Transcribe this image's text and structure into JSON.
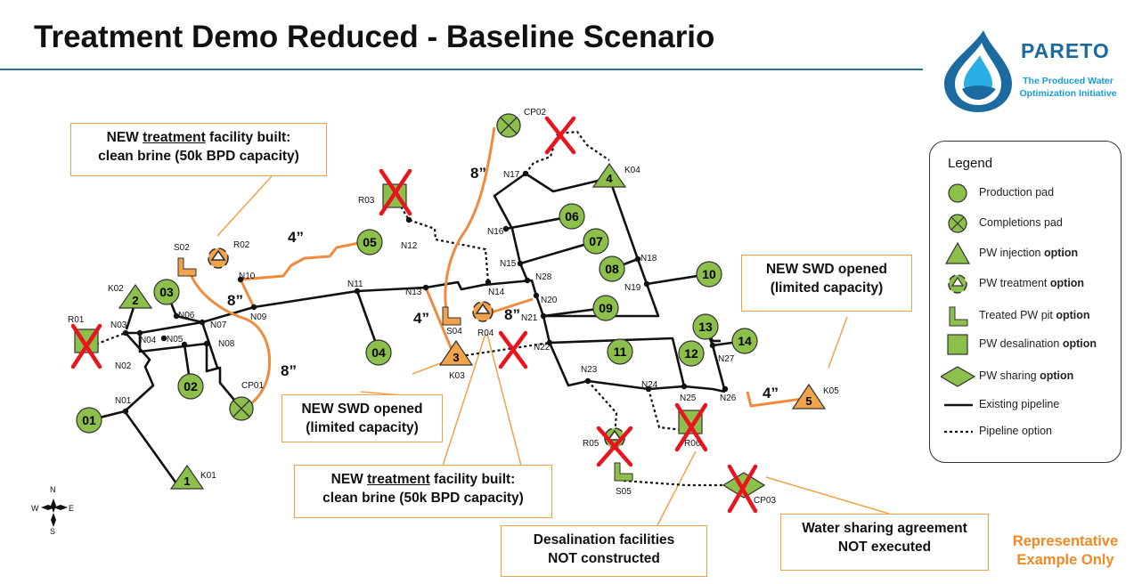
{
  "title": "Treatment Demo Reduced - Baseline Scenario",
  "logo": {
    "name": "PARETO",
    "tagline": "The Produced Water Optimization Initiative"
  },
  "colors": {
    "pipeline": "#111111",
    "new_pipeline": "#f08a3c",
    "pad_fill": "#8cc04b",
    "option_fill": "#f0a34a",
    "not_built": "#e8141e",
    "callout_border": "#f0a34a"
  },
  "nodes": {
    "production": [
      "01",
      "02",
      "03",
      "04",
      "05",
      "06",
      "07",
      "08",
      "09",
      "10",
      "11",
      "12",
      "13",
      "14"
    ],
    "completions": [
      "CP01",
      "CP02",
      "CP03"
    ],
    "injection": [
      "1",
      "2",
      "3",
      "4",
      "5"
    ],
    "injection_labels": [
      "K01",
      "K02",
      "K03",
      "K04",
      "K05"
    ],
    "treatment": [
      "R02",
      "R04",
      "R05"
    ],
    "pits": [
      "S02",
      "S04",
      "S05"
    ],
    "desalination": [
      "R01",
      "R03",
      "R06"
    ],
    "junctions": [
      "N01",
      "N02",
      "N03",
      "N04",
      "N05",
      "N06",
      "N07",
      "N08",
      "N09",
      "N10",
      "N11",
      "N12",
      "N13",
      "N14",
      "N15",
      "N16",
      "N17",
      "N18",
      "N19",
      "N20",
      "N21",
      "N22",
      "N23",
      "N24",
      "N25",
      "N26",
      "N27",
      "N28"
    ]
  },
  "pipe_sizes": [
    "4”",
    "8”",
    "8”",
    "8”",
    "4”",
    "8”",
    "4”"
  ],
  "callouts": {
    "treatment_1": {
      "pre": "NEW ",
      "u": "treatment",
      "post": " facility built:",
      "line2": "clean brine (50k BPD capacity)"
    },
    "treatment_2": {
      "pre": "NEW ",
      "u": "treatment",
      "post": " facility built:",
      "line2": "clean brine (50k BPD capacity)"
    },
    "swd_1": {
      "line1": "NEW SWD opened",
      "line2": "(limited capacity)"
    },
    "swd_2": {
      "line1": "NEW SWD opened",
      "line2": "(limited capacity)"
    },
    "desal": {
      "line1": "Desalination facilities",
      "line2": "NOT constructed"
    },
    "sharing": {
      "line1": "Water sharing agreement",
      "line2": "NOT executed"
    }
  },
  "legend": {
    "title": "Legend",
    "items": [
      {
        "text": "Production pad",
        "bold": "",
        "icon": "production-pad-icon"
      },
      {
        "text": "Completions pad",
        "bold": "",
        "icon": "completions-pad-icon"
      },
      {
        "text": "PW injection ",
        "bold": "option",
        "icon": "injection-triangle-icon"
      },
      {
        "text": "PW treatment ",
        "bold": "option",
        "icon": "recycle-icon"
      },
      {
        "text": "Treated PW pit ",
        "bold": "option",
        "icon": "pit-icon"
      },
      {
        "text": "PW desalination ",
        "bold": "option",
        "icon": "desalination-square-icon"
      },
      {
        "text": "PW sharing ",
        "bold": "option",
        "icon": "sharing-diamond-icon"
      },
      {
        "text": "Existing pipeline",
        "bold": "",
        "icon": "solid-line-icon"
      },
      {
        "text": "Pipeline option",
        "bold": "",
        "icon": "dotted-line-icon"
      }
    ]
  },
  "compass": {
    "n": "N",
    "s": "S",
    "e": "E",
    "w": "W"
  },
  "footer": "Representative Example Only"
}
